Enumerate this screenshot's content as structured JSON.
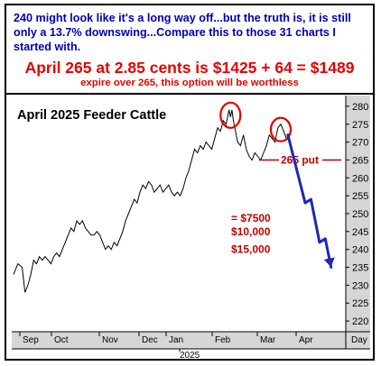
{
  "header": {
    "intro": "240 might look like it's a long way off...but the truth is, it is still only a 13.7% downswing...Compare this to those 31 charts I started with.",
    "headline": "April 265 at 2.85 cents is $1425 + 64 = $1489",
    "subline": "expire over 265, this option will be worthless"
  },
  "chart_data": {
    "type": "line",
    "title": "April 2025 Feeder Cattle",
    "y_ticks": [
      220,
      225,
      230,
      235,
      240,
      245,
      250,
      255,
      260,
      265,
      270,
      275,
      280
    ],
    "ylim": [
      217,
      283
    ],
    "x_months": [
      "Sep",
      "Oct",
      "Nov",
      "Dec",
      "Jan",
      "Feb",
      "Mar",
      "Apr"
    ],
    "x_unit_label": "Day",
    "x_year_label": "2025",
    "series": [
      {
        "values": [
          [
            0,
            233
          ],
          [
            3,
            236
          ],
          [
            6,
            235
          ],
          [
            8,
            228
          ],
          [
            10,
            230
          ],
          [
            12,
            233
          ],
          [
            14,
            237
          ],
          [
            16,
            236
          ],
          [
            18,
            238
          ],
          [
            20,
            237
          ],
          [
            22,
            238
          ],
          [
            24,
            237
          ],
          [
            26,
            236
          ],
          [
            28,
            238
          ],
          [
            30,
            239
          ],
          [
            32,
            238
          ],
          [
            34,
            240
          ],
          [
            36,
            242
          ],
          [
            38,
            244
          ],
          [
            40,
            246
          ],
          [
            42,
            245
          ],
          [
            44,
            248
          ],
          [
            46,
            247
          ],
          [
            48,
            248
          ],
          [
            50,
            246
          ],
          [
            52,
            245
          ],
          [
            54,
            244
          ],
          [
            56,
            244
          ],
          [
            58,
            245
          ],
          [
            60,
            244
          ],
          [
            62,
            242
          ],
          [
            64,
            240
          ],
          [
            66,
            241
          ],
          [
            68,
            240
          ],
          [
            70,
            242
          ],
          [
            72,
            241
          ],
          [
            74,
            243
          ],
          [
            76,
            245
          ],
          [
            78,
            248
          ],
          [
            80,
            250
          ],
          [
            82,
            252
          ],
          [
            84,
            254
          ],
          [
            86,
            253
          ],
          [
            88,
            256
          ],
          [
            90,
            258
          ],
          [
            92,
            257
          ],
          [
            94,
            259
          ],
          [
            96,
            258
          ],
          [
            98,
            256
          ],
          [
            100,
            257
          ],
          [
            102,
            258
          ],
          [
            104,
            256
          ],
          [
            106,
            257
          ],
          [
            108,
            258
          ],
          [
            110,
            256
          ],
          [
            112,
            255
          ],
          [
            114,
            256
          ],
          [
            116,
            255
          ],
          [
            118,
            257
          ],
          [
            120,
            260
          ],
          [
            122,
            262
          ],
          [
            124,
            265
          ],
          [
            126,
            268
          ],
          [
            128,
            267
          ],
          [
            130,
            269
          ],
          [
            132,
            268
          ],
          [
            134,
            270
          ],
          [
            136,
            269
          ],
          [
            138,
            268
          ],
          [
            140,
            271
          ],
          [
            142,
            274
          ],
          [
            144,
            273
          ],
          [
            146,
            276
          ],
          [
            148,
            275
          ],
          [
            150,
            279
          ],
          [
            151,
            277
          ],
          [
            152,
            279
          ],
          [
            153,
            276
          ],
          [
            154,
            274
          ],
          [
            155,
            272
          ],
          [
            156,
            270
          ],
          [
            158,
            269
          ],
          [
            160,
            272
          ],
          [
            162,
            268
          ],
          [
            164,
            266
          ],
          [
            166,
            265
          ],
          [
            168,
            267
          ],
          [
            170,
            266
          ],
          [
            172,
            265
          ],
          [
            174,
            267
          ],
          [
            176,
            269
          ],
          [
            178,
            272
          ],
          [
            180,
            271
          ],
          [
            182,
            270
          ],
          [
            184,
            274
          ],
          [
            186,
            275
          ],
          [
            188,
            273
          ],
          [
            190,
            271
          ]
        ]
      }
    ],
    "projection": [
      [
        191,
        272
      ],
      [
        203,
        253
      ],
      [
        207,
        254
      ],
      [
        213,
        242
      ],
      [
        217,
        243
      ],
      [
        221,
        235
      ]
    ],
    "annotations": [
      {
        "label": "265 put",
        "value": 265
      },
      {
        "label": "= $7500",
        "value": 248.7
      },
      {
        "label": "$10,000",
        "value": 245
      },
      {
        "label": "$15,000",
        "value": 240
      }
    ],
    "colors": {
      "price": "#000000",
      "circle": "#e00000",
      "projection": "#1e28b4",
      "put_line": "#c00000",
      "axis_panel": "#d6d6d6"
    }
  }
}
